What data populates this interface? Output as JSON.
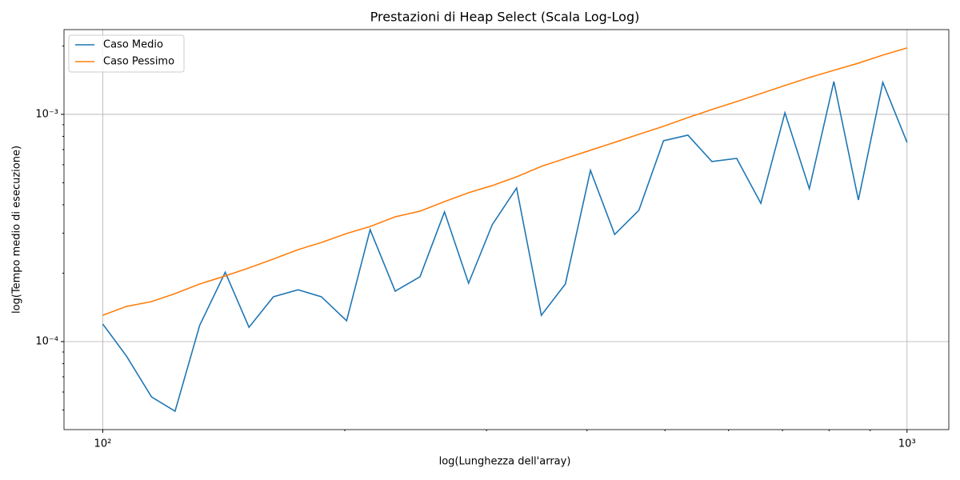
{
  "chart_data": {
    "type": "line",
    "title": "Prestazioni di Heap Select (Scala Log-Log)",
    "xlabel": "log(Lunghezza dell'array)",
    "ylabel": "log(Tempo medio di esecuzione)",
    "xscale": "log",
    "yscale": "log",
    "grid": true,
    "legend": "upper left",
    "x": [
      100,
      107,
      115,
      123,
      132,
      142,
      152,
      163,
      175,
      187,
      201,
      215,
      231,
      248,
      266,
      285,
      305,
      327,
      351,
      376,
      404,
      433,
      464,
      498,
      534,
      572,
      614,
      658,
      705,
      756,
      811,
      870,
      933,
      1000
    ],
    "series": [
      {
        "name": "Caso Medio",
        "color": "#1f77b4",
        "values": [
          0.0001195,
          8.65e-05,
          5.71e-05,
          4.94e-05,
          0.000118,
          0.000202,
          0.0001156,
          0.0001575,
          0.000169,
          0.0001575,
          0.0001235,
          0.000311,
          0.0001667,
          0.000193,
          0.000372,
          0.0001807,
          0.000327,
          0.000474,
          0.0001306,
          0.0001793,
          0.000567,
          0.000296,
          0.000378,
          0.000765,
          0.00081,
          0.00062,
          0.00064,
          0.000406,
          0.001016,
          0.000471,
          0.001394,
          0.00042,
          0.001383,
          0.000753
        ]
      },
      {
        "name": "Caso Pessimo",
        "color": "#ff7f0e",
        "values": [
          0.0001306,
          0.0001428,
          0.00015,
          0.0001626,
          0.0001793,
          0.0001945,
          0.000211,
          0.000231,
          0.000254,
          0.000273,
          0.000299,
          0.000321,
          0.000354,
          0.000375,
          0.000413,
          0.000452,
          0.000486,
          0.000531,
          0.00059,
          0.00064,
          0.000695,
          0.000753,
          0.000817,
          0.000886,
          0.000968,
          0.00105,
          0.001138,
          0.001235,
          0.001339,
          0.001452,
          0.001562,
          0.00168,
          0.001822,
          0.00196
        ]
      }
    ],
    "xlim": [
      89.5,
      1127
    ],
    "ylim": [
      4.1e-05,
      0.00236
    ],
    "xticks": [
      {
        "value": 100,
        "label": "10²"
      },
      {
        "value": 1000,
        "label": "10³"
      }
    ],
    "yticks": [
      {
        "value": 0.0001,
        "label": "10⁻⁴"
      },
      {
        "value": 0.001,
        "label": "10⁻³"
      }
    ],
    "xminor": [
      200,
      300,
      400,
      500,
      600,
      700,
      800,
      900
    ],
    "yminor": [
      5e-05,
      6e-05,
      7e-05,
      8e-05,
      9e-05,
      0.0002,
      0.0003,
      0.0004,
      0.0005,
      0.0006,
      0.0007,
      0.0008,
      0.0009,
      0.002
    ]
  }
}
